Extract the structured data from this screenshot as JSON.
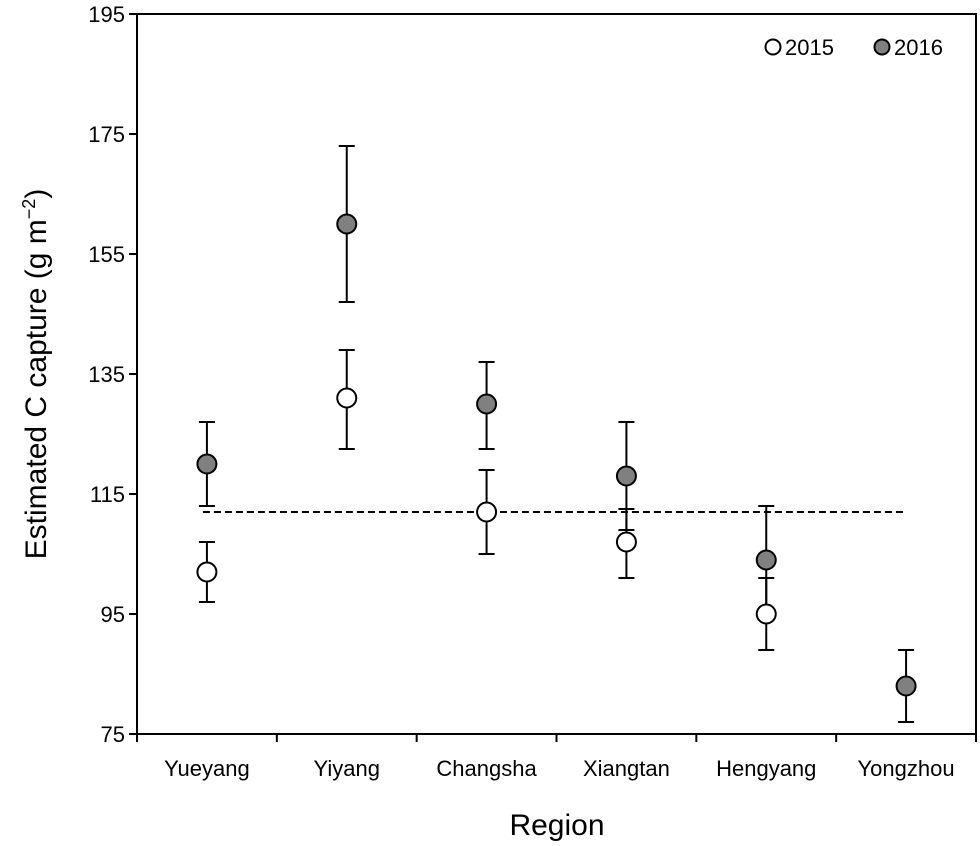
{
  "chart_data": {
    "type": "scatter",
    "xlabel": "Region",
    "ylabel_main": "Estimated C capture (g m",
    "ylabel_exp": "−2",
    "ylabel_close": ")",
    "categories": [
      "Yueyang",
      "Yiyang",
      "Changsha",
      "Xiangtan",
      "Hengyang",
      "Yongzhou"
    ],
    "ylim": [
      75,
      195
    ],
    "yticks": [
      75,
      95,
      115,
      135,
      155,
      175,
      195
    ],
    "reference_line": 112,
    "legend_position": "top-right",
    "series": [
      {
        "name": "2015",
        "color": "#ffffff",
        "values": [
          102,
          131,
          112,
          107,
          95,
          null
        ],
        "err_low": [
          97,
          122.5,
          105,
          101,
          89,
          null
        ],
        "err_high": [
          107,
          139,
          119,
          112.5,
          101,
          null
        ]
      },
      {
        "name": "2016",
        "color": "#808080",
        "values": [
          120,
          160,
          130,
          118,
          104,
          83
        ],
        "err_low": [
          113,
          147,
          122.5,
          109,
          95,
          77
        ],
        "err_high": [
          127,
          173,
          137,
          127,
          113,
          89
        ]
      }
    ]
  }
}
